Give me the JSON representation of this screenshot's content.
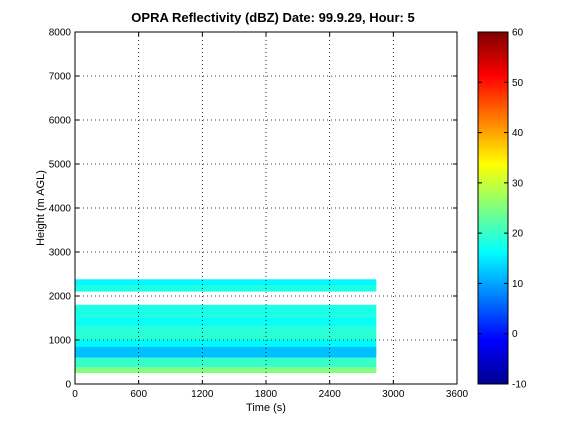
{
  "chart_data": {
    "type": "heatmap",
    "title": "OPRA Reflectivity (dBZ)  Date: 99.9.29, Hour: 5",
    "xlabel": "Time (s)",
    "ylabel": "Height (m AGL)",
    "xlim": [
      0,
      3600
    ],
    "ylim": [
      0,
      8000
    ],
    "x_ticks": [
      "0",
      "600",
      "1200",
      "1800",
      "2400",
      "3000",
      "3600"
    ],
    "y_ticks": [
      "0",
      "1000",
      "2000",
      "3000",
      "4000",
      "5000",
      "6000",
      "7000",
      "8000"
    ],
    "grid": true,
    "colorbar": {
      "colormap": "jet",
      "clim": [
        -10,
        60
      ],
      "ticks": [
        "-10",
        "0",
        "10",
        "20",
        "30",
        "40",
        "50",
        "60"
      ]
    },
    "layers": [
      {
        "x_range": [
          0,
          2840
        ],
        "height_range": [
          250,
          380
        ],
        "dbz": 25
      },
      {
        "x_range": [
          0,
          2840
        ],
        "height_range": [
          380,
          600
        ],
        "dbz": 20
      },
      {
        "x_range": [
          0,
          2840
        ],
        "height_range": [
          600,
          850
        ],
        "dbz": 12
      },
      {
        "x_range": [
          0,
          2840
        ],
        "height_range": [
          850,
          1000
        ],
        "dbz": 16
      },
      {
        "x_range": [
          0,
          2840
        ],
        "height_range": [
          1000,
          1300
        ],
        "dbz": 19
      },
      {
        "x_range": [
          0,
          2840
        ],
        "height_range": [
          1300,
          1500
        ],
        "dbz": 17
      },
      {
        "x_range": [
          0,
          2840
        ],
        "height_range": [
          1500,
          1800
        ],
        "dbz": 18
      },
      {
        "x_range": [
          0,
          2840
        ],
        "height_range": [
          2100,
          2250
        ],
        "dbz": 18
      },
      {
        "x_range": [
          0,
          2840
        ],
        "height_range": [
          2250,
          2380
        ],
        "dbz": 16
      }
    ]
  }
}
